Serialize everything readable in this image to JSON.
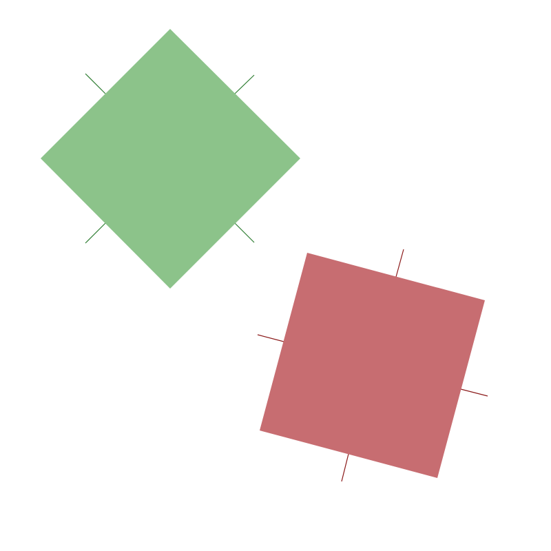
{
  "shapes": [
    {
      "id": "green-diamond",
      "kind": "square",
      "fill_color": "#8cc38a",
      "tick_color": "#2e7d32"
    },
    {
      "id": "red-square",
      "kind": "square",
      "fill_color": "#c76d71",
      "tick_color": "#8b1a1a"
    }
  ]
}
